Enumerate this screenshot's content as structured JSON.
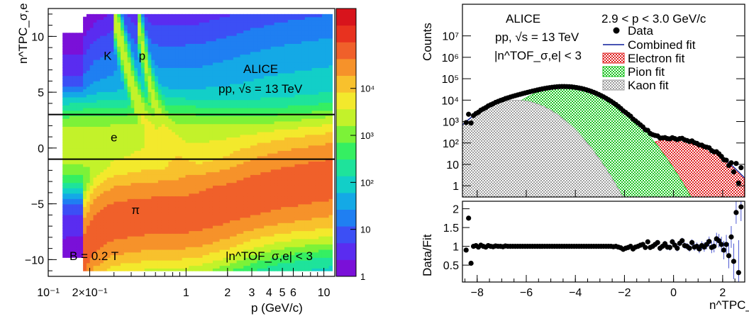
{
  "chart_data": [
    {
      "type": "heatmap",
      "xlabel": "p (GeV/c)",
      "ylabel": "n^TPC_σ,e",
      "xscale": "log",
      "xlim": [
        0.1,
        12
      ],
      "ylim": [
        -11.5,
        12.5
      ],
      "x_ticks": [
        {
          "v": 0.1,
          "label": "10⁻¹"
        },
        {
          "v": 0.2,
          "label": "2×10⁻¹"
        },
        {
          "v": 1,
          "label": "1"
        },
        {
          "v": 2,
          "label": "2"
        },
        {
          "v": 3,
          "label": "3"
        },
        {
          "v": 4,
          "label": "4"
        },
        {
          "v": 5,
          "label": "5"
        },
        {
          "v": 6,
          "label": "6"
        },
        {
          "v": 10,
          "label": "10"
        }
      ],
      "y_ticks": [
        {
          "v": -10,
          "label": "−10"
        },
        {
          "v": -5,
          "label": "−5"
        },
        {
          "v": 0,
          "label": "0"
        },
        {
          "v": 5,
          "label": "5"
        },
        {
          "v": 10,
          "label": "10"
        }
      ],
      "colorbar": {
        "scale": "log",
        "range": [
          1,
          500000
        ],
        "ticks": [
          {
            "v": 1,
            "label": "1"
          },
          {
            "v": 10,
            "label": "10"
          },
          {
            "v": 100,
            "label": "10²"
          },
          {
            "v": 1000,
            "label": "10³"
          },
          {
            "v": 10000,
            "label": "10⁴"
          }
        ],
        "colors": [
          "#7a10d8",
          "#5a2cf0",
          "#3c4ff5",
          "#1f7ff2",
          "#14a9e6",
          "#12cfc8",
          "#1ee39b",
          "#35ef62",
          "#7cf238",
          "#c3f22a",
          "#f3e92c",
          "#f8c12d",
          "#f6922a",
          "#f0602a",
          "#e8321f",
          "#d8141c"
        ]
      },
      "horizontal_lines": [
        3,
        -1
      ],
      "bands": [
        {
          "name": "e",
          "points": [
            [
              0.13,
              0.2
            ],
            [
              0.2,
              0.25
            ],
            [
              0.3,
              0.3
            ],
            [
              0.5,
              0.4
            ],
            [
              0.8,
              0.4
            ],
            [
              1.5,
              0.3
            ],
            [
              3,
              0.0
            ],
            [
              6,
              -0.3
            ],
            [
              11,
              -0.5
            ]
          ],
          "width": 1.5,
          "peak": 3000
        },
        {
          "name": "π",
          "points": [
            [
              0.18,
              -9.5
            ],
            [
              0.22,
              -7.5
            ],
            [
              0.3,
              -6.5
            ],
            [
              0.5,
              -6.1
            ],
            [
              0.8,
              -6.0
            ],
            [
              1.2,
              -5.8
            ],
            [
              2,
              -5.0
            ],
            [
              3,
              -4.2
            ],
            [
              5,
              -3.5
            ],
            [
              11,
              -2.8
            ]
          ],
          "width": 2.0,
          "peak": 60000
        },
        {
          "name": "K",
          "points": [
            [
              0.3,
              12
            ],
            [
              0.36,
              8
            ],
            [
              0.42,
              5
            ],
            [
              0.5,
              2.5
            ],
            [
              0.62,
              0.5
            ],
            [
              0.8,
              -1.2
            ],
            [
              1.1,
              -2.6
            ],
            [
              1.6,
              -3.6
            ],
            [
              2.5,
              -4.4
            ],
            [
              4,
              -4.8
            ],
            [
              8,
              -5
            ]
          ],
          "width": 0.9,
          "peak": 3000
        },
        {
          "name": "p",
          "points": [
            [
              0.44,
              12
            ],
            [
              0.5,
              8
            ],
            [
              0.56,
              5
            ],
            [
              0.66,
              2.5
            ],
            [
              0.8,
              0.5
            ],
            [
              1.0,
              -1.5
            ],
            [
              1.4,
              -3.3
            ],
            [
              2,
              -4.8
            ],
            [
              3,
              -5.8
            ],
            [
              5,
              -6.5
            ],
            [
              10,
              -7
            ]
          ],
          "width": 0.9,
          "peak": 2000
        }
      ],
      "annotations": [
        {
          "text": "K",
          "x": 0.27,
          "y": 7.9
        },
        {
          "text": "p",
          "x": 0.48,
          "y": 7.9
        },
        {
          "text": "e",
          "x": 0.3,
          "y": 0.6
        },
        {
          "text": "π",
          "x": 0.43,
          "y": -5.9
        }
      ],
      "texts": {
        "experiment": "ALICE",
        "system": "pp, √s = 13 TeV",
        "field": "B = 0.2 T",
        "cut": "|n^TOF_σ,e| < 3"
      }
    },
    {
      "type": "line",
      "upper_panel": {
        "ylabel": "Counts",
        "yscale": "log",
        "ylim": [
          0.3,
          300000000
        ],
        "xlim": [
          -8.6,
          2.9
        ],
        "y_ticks": [
          {
            "v": 1,
            "label": "1"
          },
          {
            "v": 10,
            "label": "10"
          },
          {
            "v": 100,
            "label": "10²"
          },
          {
            "v": 1000,
            "label": "10³"
          },
          {
            "v": 10000,
            "label": "10⁴"
          },
          {
            "v": 100000,
            "label": "10⁵"
          },
          {
            "v": 1000000,
            "label": "10⁶"
          },
          {
            "v": 10000000,
            "label": "10⁷"
          }
        ],
        "components": [
          {
            "name": "Electron fit",
            "amplitude": 150,
            "mean": 0.0,
            "sigma": 1.0,
            "color": "#e02020"
          },
          {
            "name": "Pion fit",
            "amplitude": 42000,
            "mean": -4.4,
            "sigma": 1.05,
            "color": "#19c41f"
          },
          {
            "name": "Kaon fit",
            "amplitude": 10000,
            "mean": -6.4,
            "sigma": 0.95,
            "color": "#9e9e9e"
          }
        ],
        "legend": {
          "data": "Data",
          "combined": "Combined fit",
          "electron": "Electron fit",
          "pion": "Pion fit",
          "kaon": "Kaon fit"
        },
        "combined_color": "#0b1b9a"
      },
      "lower_panel": {
        "ylabel": "Data/Fit",
        "ylim": [
          0.05,
          2.2
        ],
        "xlabel": "n^TPC_σ,e",
        "x_ticks": [
          {
            "v": -8,
            "label": "−8"
          },
          {
            "v": -6,
            "label": "−6"
          },
          {
            "v": -4,
            "label": "−4"
          },
          {
            "v": -2,
            "label": "−2"
          },
          {
            "v": 0,
            "label": "0"
          },
          {
            "v": 2,
            "label": "2"
          }
        ],
        "y_ticks": [
          {
            "v": 0.5,
            "label": "0.5"
          },
          {
            "v": 1,
            "label": "1"
          },
          {
            "v": 1.5,
            "label": "1.5"
          },
          {
            "v": 2,
            "label": "2"
          }
        ],
        "ratio_points": [
          [
            -8.45,
            0.9
          ],
          [
            -8.35,
            1.75
          ],
          [
            -8.25,
            0.55
          ],
          [
            -8.15,
            1.0
          ],
          [
            -8.05,
            1.02
          ],
          [
            -7.95,
            0.98
          ],
          [
            -7.85,
            1.03
          ],
          [
            -7.75,
            1.0
          ],
          [
            -7.65,
            0.98
          ],
          [
            -7.55,
            1.02
          ],
          [
            -7.45,
            1.0
          ],
          [
            -7.35,
            0.99
          ],
          [
            -7.25,
            1.01
          ],
          [
            -7.15,
            1.0
          ],
          [
            -7.05,
            1.0
          ],
          [
            -6.95,
            0.99
          ],
          [
            -6.85,
            1.01
          ],
          [
            -6.75,
            1.0
          ],
          [
            -6.65,
            1.0
          ],
          [
            -6.55,
            1.0
          ],
          [
            -6.45,
            1.0
          ],
          [
            -6.35,
            1.0
          ],
          [
            -6.25,
            1.0
          ],
          [
            -6.15,
            1.0
          ],
          [
            -6.05,
            1.0
          ],
          [
            -5.95,
            1.0
          ],
          [
            -5.85,
            1.0
          ],
          [
            -5.75,
            1.0
          ],
          [
            -5.65,
            1.0
          ],
          [
            -5.55,
            1.0
          ],
          [
            -5.45,
            1.0
          ],
          [
            -5.35,
            1.0
          ],
          [
            -5.25,
            1.0
          ],
          [
            -5.15,
            1.0
          ],
          [
            -5.05,
            1.0
          ],
          [
            -4.95,
            1.0
          ],
          [
            -4.85,
            1.0
          ],
          [
            -4.75,
            1.0
          ],
          [
            -4.65,
            1.0
          ],
          [
            -4.55,
            1.0
          ],
          [
            -4.45,
            1.0
          ],
          [
            -4.35,
            1.0
          ],
          [
            -4.25,
            1.0
          ],
          [
            -4.15,
            1.0
          ],
          [
            -4.05,
            1.0
          ],
          [
            -3.95,
            1.0
          ],
          [
            -3.85,
            1.0
          ],
          [
            -3.75,
            1.0
          ],
          [
            -3.65,
            1.0
          ],
          [
            -3.55,
            1.0
          ],
          [
            -3.45,
            1.0
          ],
          [
            -3.35,
            1.0
          ],
          [
            -3.25,
            1.0
          ],
          [
            -3.15,
            1.0
          ],
          [
            -3.05,
            1.0
          ],
          [
            -2.95,
            1.0
          ],
          [
            -2.85,
            1.0
          ],
          [
            -2.75,
            1.0
          ],
          [
            -2.65,
            1.0
          ],
          [
            -2.55,
            1.0
          ],
          [
            -2.45,
            0.99
          ],
          [
            -2.35,
            1.0
          ],
          [
            -2.25,
            0.98
          ],
          [
            -2.15,
            0.96
          ],
          [
            -2.05,
            0.92
          ],
          [
            -1.95,
            0.95
          ],
          [
            -1.85,
            0.97
          ],
          [
            -1.75,
            1.0
          ],
          [
            -1.65,
            0.93
          ],
          [
            -1.55,
            0.98
          ],
          [
            -1.45,
            1.0
          ],
          [
            -1.35,
            1.03
          ],
          [
            -1.25,
            1.05
          ],
          [
            -1.15,
            0.97
          ],
          [
            -1.05,
            1.12
          ],
          [
            -0.95,
            0.97
          ],
          [
            -0.85,
            1.0
          ],
          [
            -0.75,
            1.05
          ],
          [
            -0.65,
            1.1
          ],
          [
            -0.55,
            0.95
          ],
          [
            -0.45,
            1.0
          ],
          [
            -0.35,
            1.07
          ],
          [
            -0.25,
            0.98
          ],
          [
            -0.15,
            0.97
          ],
          [
            -0.05,
            1.12
          ],
          [
            0.05,
            1.03
          ],
          [
            0.15,
            0.95
          ],
          [
            0.25,
            1.08
          ],
          [
            0.35,
            1.15
          ],
          [
            0.45,
            1.02
          ],
          [
            0.55,
            1.0
          ],
          [
            0.65,
            0.95
          ],
          [
            0.75,
            1.1
          ],
          [
            0.85,
            0.98
          ],
          [
            0.95,
            1.0
          ],
          [
            1.05,
            0.93
          ],
          [
            1.15,
            1.02
          ],
          [
            1.25,
            0.98
          ],
          [
            1.35,
            1.05
          ],
          [
            1.45,
            1.13
          ],
          [
            1.55,
            0.97
          ],
          [
            1.65,
            1.0
          ],
          [
            1.75,
            1.2
          ],
          [
            1.85,
            1.15
          ],
          [
            1.95,
            1.05
          ],
          [
            2.05,
            0.9
          ],
          [
            2.15,
            1.05
          ],
          [
            2.25,
            0.75
          ],
          [
            2.35,
            1.25
          ],
          [
            2.45,
            0.6
          ],
          [
            2.55,
            1.9
          ],
          [
            2.65,
            0.3
          ],
          [
            2.75,
            2.05
          ]
        ]
      },
      "texts": {
        "experiment": "ALICE",
        "system": "pp, √s = 13 TeV",
        "cut": "|n^TOF_σ,e| < 3",
        "momentum_range": "2.9 < p < 3.0 GeV/c"
      }
    }
  ]
}
